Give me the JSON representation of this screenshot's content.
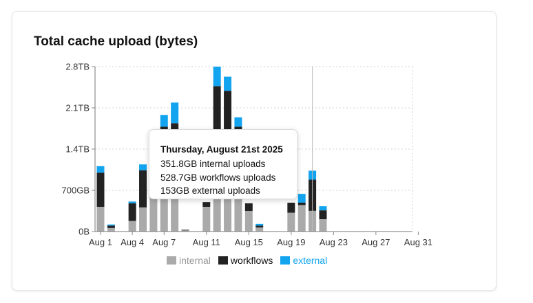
{
  "card": {
    "title": "Total cache upload (bytes)"
  },
  "chart_data": {
    "type": "bar",
    "stacked": true,
    "title": "Total cache upload (bytes)",
    "x_unit": "day",
    "x": [
      "Aug 1",
      "Aug 2",
      "Aug 3",
      "Aug 4",
      "Aug 5",
      "Aug 6",
      "Aug 7",
      "Aug 8",
      "Aug 9",
      "Aug 10",
      "Aug 11",
      "Aug 12",
      "Aug 13",
      "Aug 14",
      "Aug 15",
      "Aug 16",
      "Aug 17",
      "Aug 18",
      "Aug 19",
      "Aug 20",
      "Aug 21",
      "Aug 22",
      "Aug 23",
      "Aug 24",
      "Aug 25",
      "Aug 26",
      "Aug 27",
      "Aug 28",
      "Aug 29",
      "Aug 30",
      "Aug 31"
    ],
    "x_ticks": [
      "Aug 1",
      "Aug 4",
      "Aug 7",
      "Aug 11",
      "Aug 15",
      "Aug 19",
      "Aug 23",
      "Aug 27",
      "Aug 31"
    ],
    "y_unit": "GB",
    "y_ticks": [
      "0B",
      "700GB",
      "1.4TB",
      "2.1TB",
      "2.8TB"
    ],
    "ylim": [
      0,
      2800
    ],
    "grid": true,
    "legend_position": "bottom",
    "series": [
      {
        "name": "internal",
        "color": "#aaaaaa",
        "values": [
          420,
          60,
          0,
          180,
          410,
          650,
          680,
          720,
          20,
          0,
          420,
          1490,
          1590,
          630,
          350,
          70,
          0,
          0,
          320,
          450,
          351.8,
          210,
          0,
          0,
          0,
          0,
          0,
          0,
          0,
          0,
          0
        ]
      },
      {
        "name": "workflows",
        "color": "#222222",
        "values": [
          580,
          40,
          0,
          300,
          630,
          730,
          1100,
          1120,
          10,
          0,
          80,
          980,
          800,
          1150,
          130,
          30,
          0,
          0,
          170,
          40,
          528.7,
          150,
          0,
          0,
          0,
          0,
          0,
          0,
          0,
          0,
          0
        ]
      },
      {
        "name": "external",
        "color": "#13a4f0",
        "values": [
          110,
          20,
          0,
          30,
          100,
          220,
          200,
          350,
          0,
          0,
          0,
          330,
          240,
          160,
          0,
          30,
          0,
          0,
          0,
          150,
          153,
          70,
          0,
          0,
          0,
          0,
          0,
          0,
          0,
          0,
          0
        ]
      }
    ],
    "hover_index": 20
  },
  "tooltip": {
    "title": "Thursday, August 21st 2025",
    "lines": [
      "351.8GB internal uploads",
      "528.7GB workflows uploads",
      "153GB external uploads"
    ]
  },
  "legend": [
    {
      "label": "internal",
      "color": "#aaaaaa",
      "text_color": "#999999"
    },
    {
      "label": "workflows",
      "color": "#222222",
      "text_color": "#111111"
    },
    {
      "label": "external",
      "color": "#13a4f0",
      "text_color": "#13a4f0"
    }
  ]
}
